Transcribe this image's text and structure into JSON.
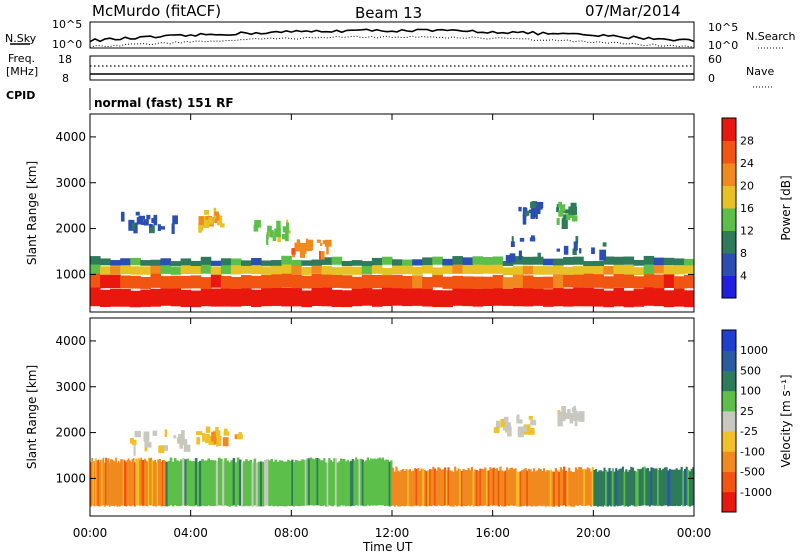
{
  "header": {
    "station": "McMurdo (fitACF)",
    "beam": "Beam 13",
    "date": "07/Mar/2014"
  },
  "top_panel": {
    "left_label": "N.Sky",
    "right_label": "N.Search",
    "left_ticks": [
      "10^5",
      "10^0"
    ],
    "right_ticks": [
      "10^5",
      "10^0"
    ]
  },
  "freq_panel": {
    "left_label_1": "Freq.",
    "left_label_2": "[MHz]",
    "right_label": "Nave",
    "left_ticks": [
      "18",
      "8"
    ],
    "right_ticks": [
      "60",
      "0"
    ],
    "cpid_label": "CPID",
    "cpid_text": "normal (fast) 151 RF"
  },
  "chart_data": [
    {
      "type": "heatmap",
      "name": "power",
      "ylabel": "Slant Range [km]",
      "xlabel": "Time UT",
      "x_ticks": [
        "00:00",
        "04:00",
        "08:00",
        "12:00",
        "16:00",
        "20:00",
        "00:00"
      ],
      "x_range_hours": [
        0,
        24
      ],
      "y_ticks": [
        1000,
        2000,
        3000,
        4000
      ],
      "ylim": [
        180,
        4500
      ],
      "colorbar": {
        "label": "Power [dB]",
        "ticks": [
          "4",
          "8",
          "12",
          "16",
          "20",
          "24",
          "28"
        ],
        "colors": [
          "#1f1fe0",
          "#2b4fb0",
          "#2e7a5a",
          "#5cbf4a",
          "#e6c227",
          "#f08a1e",
          "#f25511",
          "#e8180f"
        ]
      },
      "bands": [
        {
          "time": [
            0,
            24
          ],
          "range": [
            300,
            700
          ],
          "level": 8
        },
        {
          "time": [
            0,
            24
          ],
          "range": [
            700,
            1000
          ],
          "level": 6
        },
        {
          "time": [
            0,
            24
          ],
          "range": [
            1000,
            1200
          ],
          "level": 4
        },
        {
          "time": [
            0,
            24
          ],
          "range": [
            1200,
            1350
          ],
          "level": 2
        }
      ],
      "echo_patches": [
        {
          "time": [
            1.2,
            3.8
          ],
          "range": [
            2050,
            2400
          ],
          "level": 1
        },
        {
          "time": [
            4.0,
            5.2
          ],
          "range": [
            2100,
            2500
          ],
          "level": 4
        },
        {
          "time": [
            6.5,
            7.8
          ],
          "range": [
            1800,
            2200
          ],
          "level": 3
        },
        {
          "time": [
            8.0,
            9.5
          ],
          "range": [
            1500,
            1800
          ],
          "level": 5
        },
        {
          "time": [
            17.0,
            17.8
          ],
          "range": [
            2300,
            2600
          ],
          "level": 1
        },
        {
          "time": [
            18.5,
            19.2
          ],
          "range": [
            2200,
            2600
          ],
          "level": 2
        },
        {
          "time": [
            16.5,
            20.5
          ],
          "range": [
            1400,
            1900
          ],
          "level": 1
        }
      ]
    },
    {
      "type": "heatmap",
      "name": "velocity",
      "ylabel": "Slant Range [km]",
      "xlabel": "Time UT",
      "x_ticks": [
        "00:00",
        "04:00",
        "08:00",
        "12:00",
        "16:00",
        "20:00",
        "00:00"
      ],
      "x_range_hours": [
        0,
        24
      ],
      "y_ticks": [
        1000,
        2000,
        3000,
        4000
      ],
      "ylim": [
        180,
        4500
      ],
      "colorbar": {
        "label": "Velocity [m s⁻¹]",
        "ticks": [
          "1000",
          "500",
          "100",
          "25",
          "-25",
          "-100",
          "-500",
          "-1000"
        ],
        "colors": [
          "#1f3fd0",
          "#2a5aa0",
          "#2e7a5a",
          "#5cbf4a",
          "#c8c8c0",
          "#f0c028",
          "#f08a1e",
          "#f25511",
          "#e8180f"
        ]
      },
      "bands": [
        {
          "time": [
            0,
            3
          ],
          "range": [
            400,
            1400
          ],
          "level": 6
        },
        {
          "time": [
            3,
            8
          ],
          "range": [
            400,
            1400
          ],
          "level": 3
        },
        {
          "time": [
            8,
            12
          ],
          "range": [
            400,
            1400
          ],
          "level": 3
        },
        {
          "time": [
            12,
            16
          ],
          "range": [
            400,
            1200
          ],
          "level": 6
        },
        {
          "time": [
            16,
            20
          ],
          "range": [
            400,
            1200
          ],
          "level": 6
        },
        {
          "time": [
            20,
            24
          ],
          "range": [
            400,
            1200
          ],
          "level": 2
        }
      ],
      "echo_patches": [
        {
          "time": [
            1.5,
            3.8
          ],
          "range": [
            1700,
            2100
          ],
          "level": 4
        },
        {
          "time": [
            4,
            6
          ],
          "range": [
            1900,
            2200
          ],
          "level": 5
        },
        {
          "time": [
            16,
            17.5
          ],
          "range": [
            2100,
            2400
          ],
          "level": 4
        },
        {
          "time": [
            18.5,
            19.5
          ],
          "range": [
            2300,
            2600
          ],
          "level": 4
        }
      ]
    }
  ]
}
